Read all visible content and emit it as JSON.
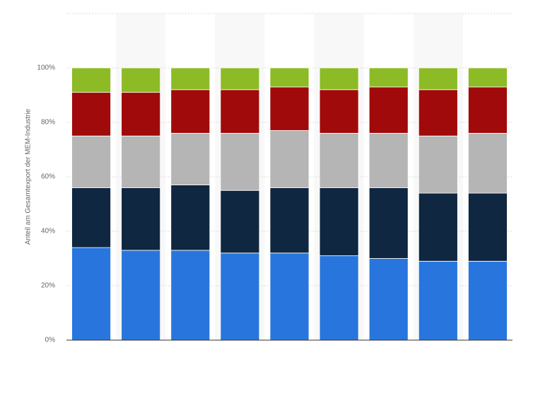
{
  "chart_data": {
    "type": "stacked-bar",
    "y_label": "Anteil am Gesamtexport der MEM-Industrie",
    "categories": [
      null,
      null,
      null,
      null,
      null,
      null,
      null,
      null,
      null
    ],
    "series": [
      {
        "color": "#2876dd",
        "values": [
          34,
          33,
          33,
          32,
          32,
          31,
          30,
          29,
          29
        ]
      },
      {
        "color": "#0f2740",
        "values": [
          22,
          23,
          24,
          23,
          24,
          25,
          26,
          25,
          25
        ]
      },
      {
        "color": "#b5b5b5",
        "values": [
          19,
          19,
          19,
          21,
          21,
          20,
          20,
          21,
          22
        ]
      },
      {
        "color": "#a10a0a",
        "values": [
          16,
          16,
          16,
          16,
          16,
          16,
          17,
          17,
          17
        ]
      },
      {
        "color": "#8cbb26",
        "values": [
          9,
          9,
          8,
          8,
          7,
          8,
          7,
          8,
          7
        ]
      }
    ],
    "ylim": [
      0,
      120
    ],
    "yticks": [
      {
        "value": 0,
        "label": "0%"
      },
      {
        "value": 20,
        "label": "20%"
      },
      {
        "value": 40,
        "label": "40%"
      },
      {
        "value": 60,
        "label": "60%"
      },
      {
        "value": 80,
        "label": "80%"
      },
      {
        "value": 100,
        "label": "100%"
      }
    ],
    "grid": true
  }
}
